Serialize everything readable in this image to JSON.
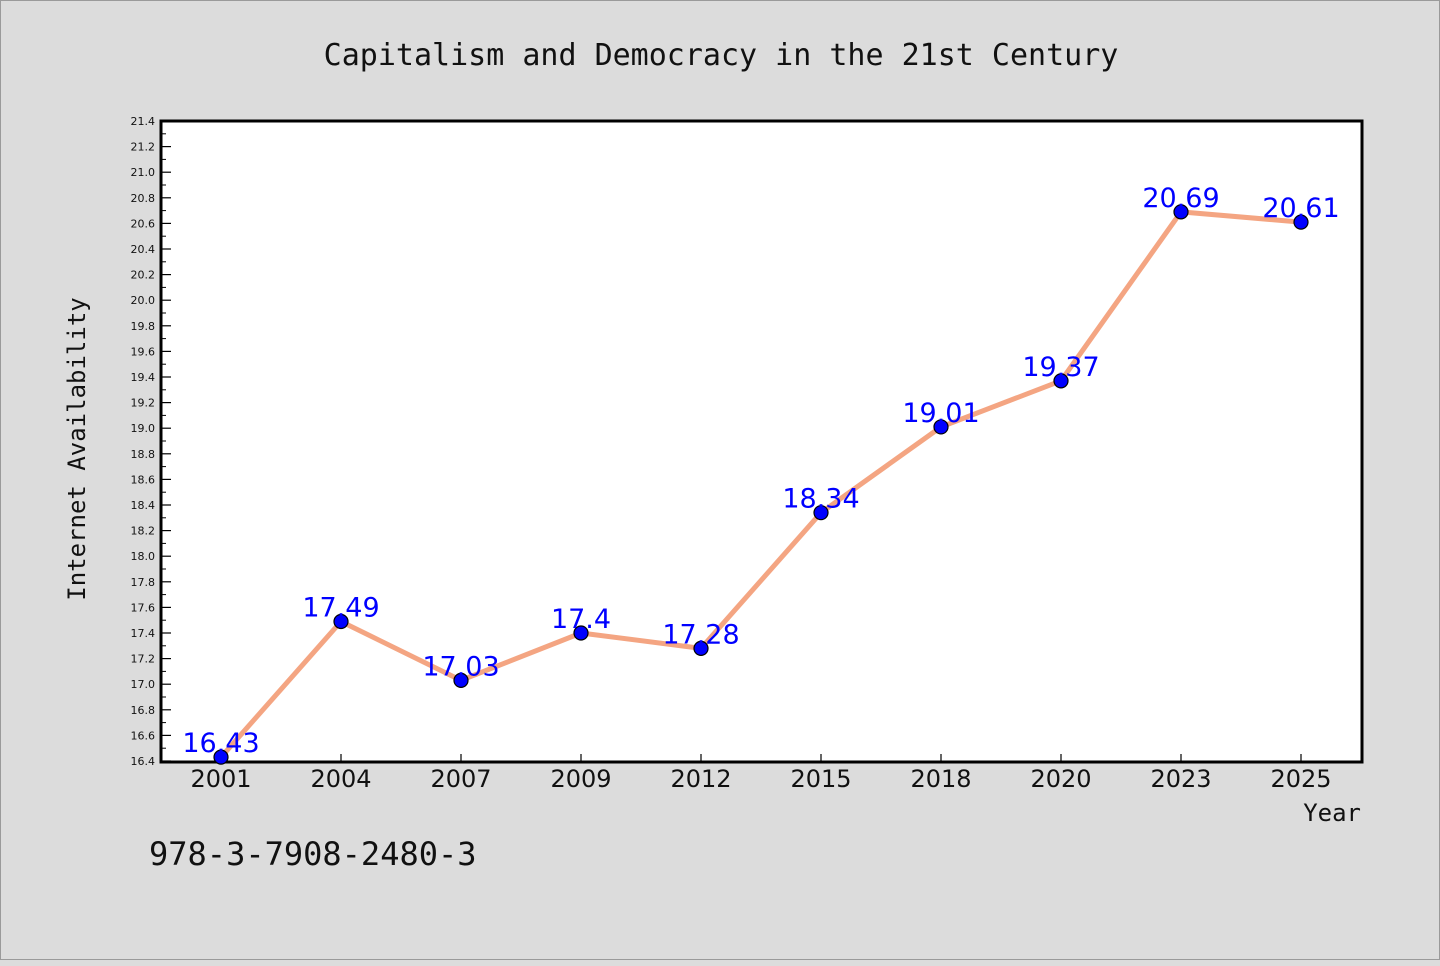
{
  "chart_data": {
    "type": "line",
    "title": "Capitalism and Democracy in the 21st Century",
    "xlabel": "Year",
    "ylabel": "Internet Availability",
    "categories": [
      "2001",
      "2004",
      "2007",
      "2009",
      "2012",
      "2015",
      "2018",
      "2020",
      "2023",
      "2025"
    ],
    "series": [
      {
        "values": [
          16.43,
          17.49,
          17.03,
          17.4,
          17.28,
          18.34,
          19.01,
          19.37,
          20.69,
          20.61
        ],
        "labels": [
          "16.43",
          "17.49",
          "17.03",
          "17.4",
          "17.28",
          "18.34",
          "19.01",
          "19.37",
          "20.69",
          "20.61"
        ],
        "line_color": "#f4a582",
        "marker_color": "#0000ff",
        "label_color": "#0000ff"
      }
    ],
    "ylim": [
      16.4,
      21.4
    ],
    "yticks": [
      "16.4",
      "16.6",
      "16.8",
      "17.0",
      "17.2",
      "17.4",
      "17.6",
      "17.8",
      "18.0",
      "18.2",
      "18.4",
      "18.6",
      "18.8",
      "19.0",
      "19.2",
      "19.4",
      "19.6",
      "19.8",
      "20.0",
      "20.2",
      "20.4",
      "20.6",
      "20.8",
      "21.0",
      "21.2",
      "21.4"
    ],
    "grid": false,
    "legend": "none",
    "colors": {
      "background": "#dcdcdc",
      "plot_background": "#ffffff",
      "axis": "#000000"
    }
  },
  "footer": {
    "isbn": "978-3-7908-2480-3"
  }
}
